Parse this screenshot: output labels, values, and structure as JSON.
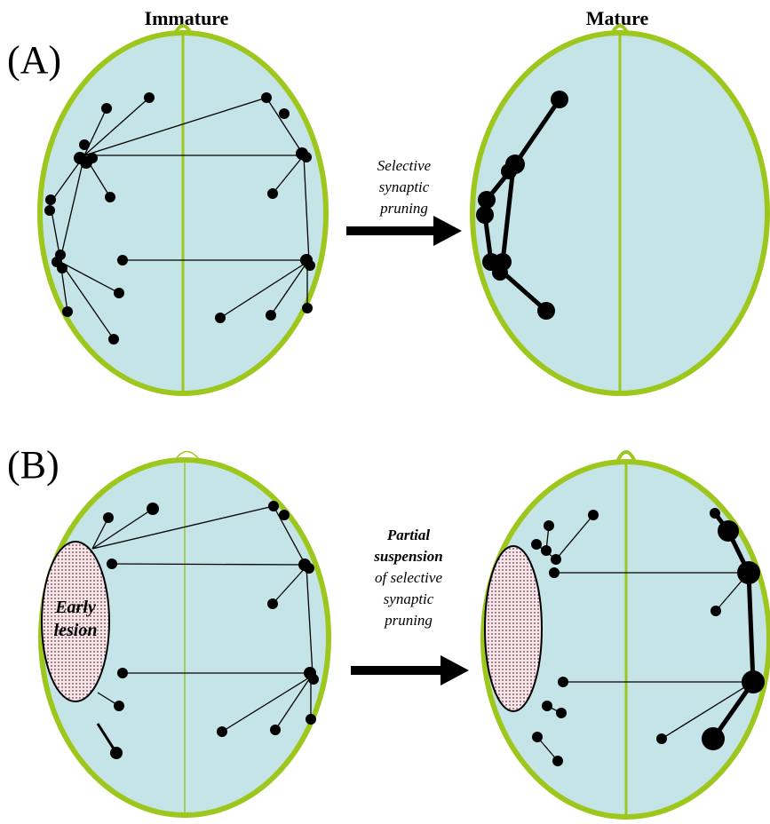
{
  "columns": {
    "left": "Immature",
    "right": "Mature"
  },
  "panels": [
    {
      "label": "(A)",
      "arrow_text": [
        "Selective",
        "synaptic",
        "pruning"
      ]
    },
    {
      "label": "(B)",
      "arrow_text": [
        "Partial",
        "suspension",
        "of selective",
        "synaptic",
        "pruning"
      ],
      "lesion_text": [
        "Early",
        "lesion"
      ]
    }
  ]
}
